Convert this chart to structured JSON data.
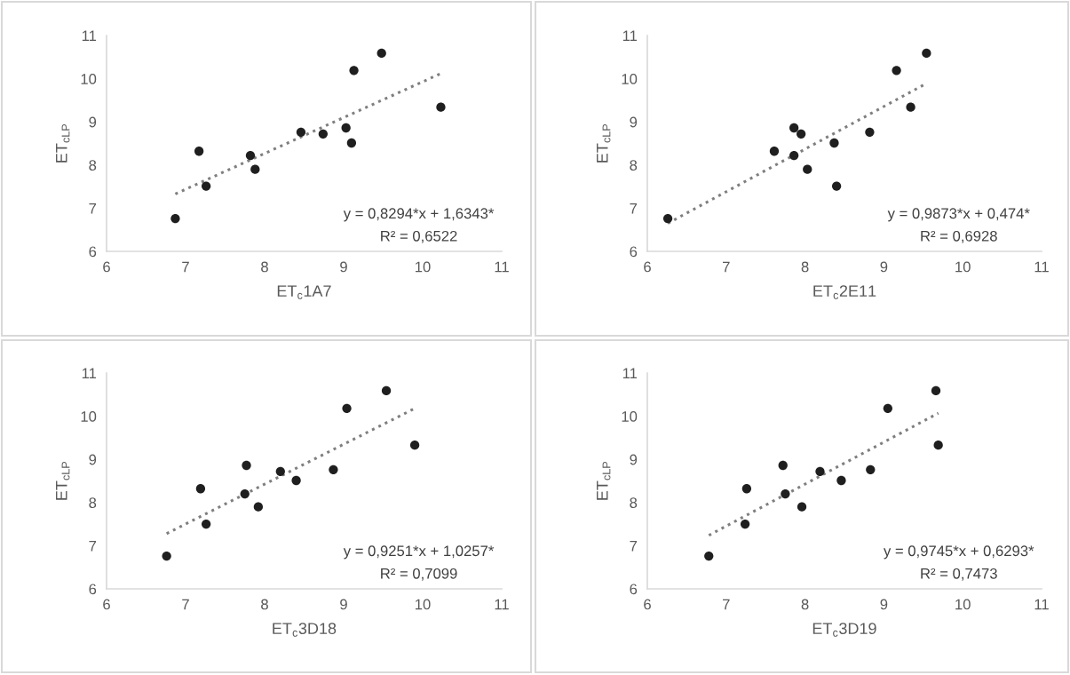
{
  "chart_data": [
    {
      "type": "scatter",
      "xlabel": "ET$_{c}$1A7",
      "ylabel": "ET$_{cLP}$",
      "xlim": [
        6,
        11
      ],
      "ylim": [
        6,
        11
      ],
      "xticks": [
        6,
        7,
        8,
        9,
        10,
        11
      ],
      "yticks": [
        6,
        7,
        8,
        9,
        10,
        11
      ],
      "grid": false,
      "legend": false,
      "annotations": [
        "y = 0,8294*x + 1,6343*",
        "R² = 0,6522"
      ],
      "series": [
        {
          "marker": "circle",
          "color": "#1f1f1f",
          "x": [
            6.87,
            7.17,
            7.26,
            7.82,
            7.88,
            8.46,
            8.74,
            9.03,
            9.1,
            9.13,
            9.48,
            10.23
          ],
          "values": [
            6.76,
            8.32,
            7.51,
            8.22,
            7.9,
            8.76,
            8.72,
            8.86,
            8.51,
            10.19,
            10.59,
            9.34
          ]
        },
        {
          "type": "line",
          "color": "#7f7f7f",
          "line_style": "dotted",
          "x": [
            6.87,
            10.23
          ],
          "values": [
            7.33,
            10.12
          ]
        }
      ]
    },
    {
      "type": "scatter",
      "xlabel": "ET$_{c}$2E11",
      "ylabel": "ET$_{cLP}$",
      "xlim": [
        6,
        11
      ],
      "ylim": [
        6,
        11
      ],
      "xticks": [
        6,
        7,
        8,
        9,
        10,
        11
      ],
      "yticks": [
        6,
        7,
        8,
        9,
        10,
        11
      ],
      "grid": false,
      "legend": false,
      "annotations": [
        "y = 0,9873*x + 0,474*",
        "R² = 0,6928"
      ],
      "series": [
        {
          "marker": "circle",
          "color": "#1f1f1f",
          "x": [
            6.26,
            7.61,
            7.86,
            7.95,
            7.86,
            8.03,
            8.37,
            8.4,
            8.82,
            9.16,
            9.34,
            9.54
          ],
          "values": [
            6.76,
            8.32,
            8.86,
            8.72,
            8.22,
            7.9,
            8.51,
            7.51,
            8.76,
            10.19,
            9.34,
            10.59
          ]
        },
        {
          "type": "line",
          "color": "#7f7f7f",
          "line_style": "dotted",
          "x": [
            6.26,
            9.54
          ],
          "values": [
            6.65,
            9.89
          ]
        }
      ]
    },
    {
      "type": "scatter",
      "xlabel": "ET$_{c}$3D18",
      "ylabel": "ET$_{cLP}$",
      "xlim": [
        6,
        11
      ],
      "ylim": [
        6,
        11
      ],
      "xticks": [
        6,
        7,
        8,
        9,
        10,
        11
      ],
      "yticks": [
        6,
        7,
        8,
        9,
        10,
        11
      ],
      "grid": false,
      "legend": false,
      "annotations": [
        "y = 0,9251*x + 1,0257*",
        "R² = 0,7099"
      ],
      "series": [
        {
          "marker": "circle",
          "color": "#1f1f1f",
          "x": [
            6.76,
            7.19,
            7.26,
            7.77,
            7.75,
            7.92,
            8.2,
            8.4,
            8.87,
            9.04,
            9.54,
            9.9
          ],
          "values": [
            6.76,
            8.32,
            7.5,
            8.86,
            8.2,
            7.9,
            8.72,
            8.51,
            8.76,
            10.18,
            10.59,
            9.33
          ]
        },
        {
          "type": "line",
          "color": "#7f7f7f",
          "line_style": "dotted",
          "x": [
            6.76,
            9.9
          ],
          "values": [
            7.28,
            10.18
          ]
        }
      ]
    },
    {
      "type": "scatter",
      "xlabel": "ET$_{c}$3D19",
      "ylabel": "ET$_{cLP}$",
      "xlim": [
        6,
        11
      ],
      "ylim": [
        6,
        11
      ],
      "xticks": [
        6,
        7,
        8,
        9,
        10,
        11
      ],
      "yticks": [
        6,
        7,
        8,
        9,
        10,
        11
      ],
      "grid": false,
      "legend": false,
      "annotations": [
        "y = 0,9745*x + 0,6293*",
        "R² = 0,7473"
      ],
      "series": [
        {
          "marker": "circle",
          "color": "#1f1f1f",
          "x": [
            6.78,
            7.26,
            7.24,
            7.72,
            7.75,
            7.96,
            8.19,
            8.46,
            8.83,
            9.05,
            9.66,
            9.69
          ],
          "values": [
            6.76,
            8.32,
            7.5,
            8.86,
            8.2,
            7.9,
            8.72,
            8.51,
            8.76,
            10.18,
            10.59,
            9.33
          ]
        },
        {
          "type": "line",
          "color": "#7f7f7f",
          "line_style": "dotted",
          "x": [
            6.78,
            9.69
          ],
          "values": [
            7.24,
            10.07
          ]
        }
      ]
    }
  ]
}
